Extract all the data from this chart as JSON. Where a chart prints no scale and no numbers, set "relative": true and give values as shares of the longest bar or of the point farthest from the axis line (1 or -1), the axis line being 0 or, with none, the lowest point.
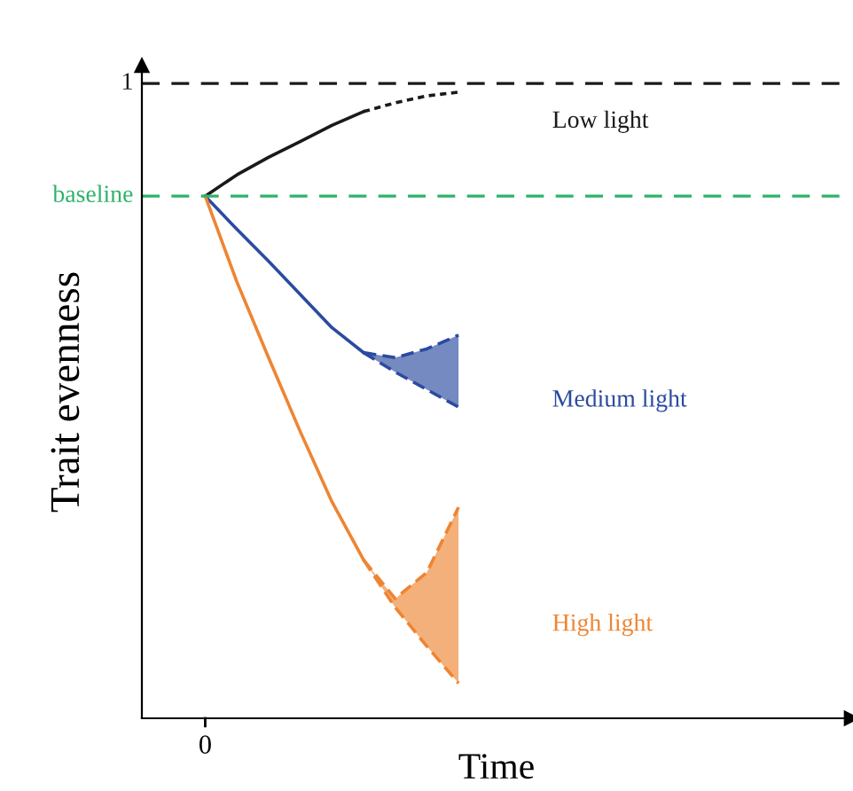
{
  "chart_data": {
    "type": "line",
    "relative": true,
    "xlabel": "Time",
    "ylabel": "Trait evenness",
    "categories": [
      null,
      null,
      null,
      null,
      null,
      null,
      null,
      null,
      null
    ],
    "annotations": [
      "0"
    ],
    "series": [
      {
        "name": "Low light",
        "color": "#1a1a1a",
        "line_style": "solid",
        "values": [
          0.834,
          0.868,
          0.896,
          0.921,
          0.947,
          0.969,
          null,
          null,
          null
        ]
      },
      {
        "color": "#1a1a1a",
        "line_style": "dotted",
        "values": [
          null,
          null,
          null,
          null,
          null,
          0.969,
          0.983,
          0.994,
          1.0
        ]
      },
      {
        "name": "Medium light",
        "color": "#2b4ba0",
        "line_style": "solid",
        "values": [
          0.834,
          0.781,
          0.73,
          0.677,
          0.624,
          0.584,
          null,
          null,
          null
        ]
      },
      {
        "color": "#2b4ba0",
        "line_style": "dashed",
        "values": [
          null,
          null,
          null,
          null,
          null,
          0.584,
          0.553,
          0.525,
          0.497
        ],
        "lower": [
          null,
          null,
          null,
          null,
          null,
          0.584,
          0.553,
          0.525,
          0.497
        ],
        "upper": [
          null,
          null,
          null,
          null,
          null,
          0.584,
          0.576,
          0.59,
          0.612
        ]
      },
      {
        "color": "#2b4ba0",
        "line_style": "dashed",
        "values": [
          null,
          null,
          null,
          null,
          null,
          0.584,
          0.576,
          0.59,
          0.612
        ]
      },
      {
        "name": "High light",
        "color": "#ee8533",
        "line_style": "solid",
        "values": [
          0.834,
          0.697,
          0.576,
          0.458,
          0.346,
          0.253,
          null,
          null,
          null
        ]
      },
      {
        "color": "#ee8533",
        "line_style": "dashed",
        "values": [
          null,
          null,
          null,
          null,
          null,
          0.253,
          0.177,
          0.115,
          0.056
        ],
        "lower": [
          null,
          null,
          null,
          null,
          null,
          0.253,
          0.177,
          0.115,
          0.056
        ],
        "upper": [
          null,
          null,
          null,
          null,
          null,
          0.253,
          0.191,
          0.233,
          0.337
        ]
      },
      {
        "color": "#ee8533",
        "line_style": "dashed",
        "values": [
          null,
          null,
          null,
          null,
          null,
          0.253,
          0.191,
          0.233,
          0.337
        ]
      }
    ],
    "ref_lines": [
      {
        "axis": "y",
        "value": 1.014,
        "label": "1",
        "color": "#1a1a1a",
        "line_style": "dashed"
      },
      {
        "axis": "y",
        "value": 0.834,
        "label": "baseline",
        "color": "#2db36a",
        "line_style": "dashed"
      }
    ],
    "legend": false,
    "marker": "none"
  }
}
